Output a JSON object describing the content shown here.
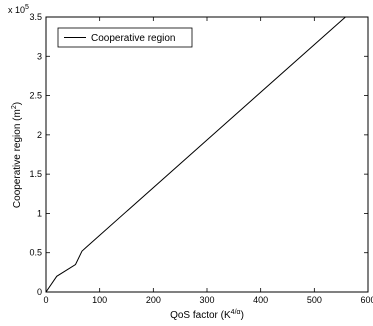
{
  "chart_data": {
    "type": "line",
    "xlabel": "QoS factor (K",
    "xlabel_superscript": "4/α",
    "xlabel_suffix": ")",
    "ylabel": "Cooperative region (m",
    "ylabel_superscript": "2",
    "ylabel_suffix": ")",
    "y_exponent_base": "x 10",
    "y_exponent_power": "5",
    "xlim": [
      0,
      600
    ],
    "ylim": [
      0,
      3.5
    ],
    "x_ticks": [
      0,
      100,
      200,
      300,
      400,
      500,
      600
    ],
    "y_ticks": [
      0,
      0.5,
      1,
      1.5,
      2,
      2.5,
      3,
      3.5
    ],
    "y_tick_labels": [
      "0",
      "0.5",
      "1",
      "1.5",
      "2",
      "2.5",
      "3",
      "3.5"
    ],
    "grid": false,
    "legend_position": "top-left",
    "series": [
      {
        "name": "Cooperative region",
        "color": "#000000",
        "x": [
          0,
          20,
          55,
          67,
          75,
          558
        ],
        "y": [
          0,
          0.2,
          0.35,
          0.52,
          0.57,
          3.5
        ]
      }
    ]
  }
}
